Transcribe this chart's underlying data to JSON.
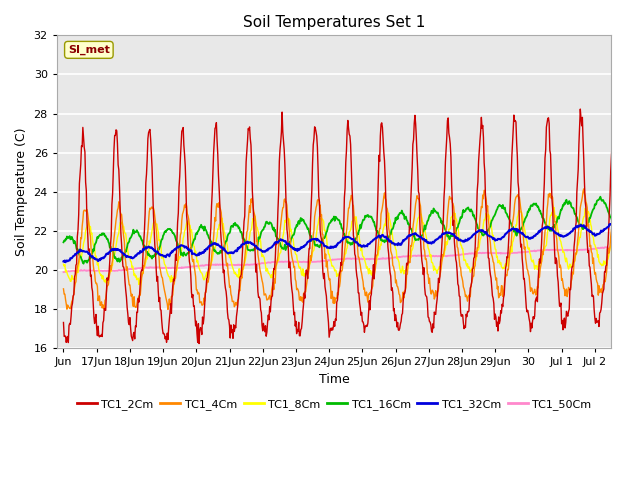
{
  "title": "Soil Temperatures Set 1",
  "xlabel": "Time",
  "ylabel": "Soil Temperature (C)",
  "ylim": [
    16,
    32
  ],
  "x_tick_labels": [
    "Jun",
    "17Jun",
    "18Jun",
    "19Jun",
    "20Jun",
    "21Jun",
    "22Jun",
    "23Jun",
    "24Jun",
    "25Jun",
    "26Jun",
    "27Jun",
    "28Jun",
    "29Jun",
    "30",
    "Jul 1",
    "Jul 2"
  ],
  "annotation_text": "SI_met",
  "legend_entries": [
    "TC1_2Cm",
    "TC1_4Cm",
    "TC1_8Cm",
    "TC1_16Cm",
    "TC1_32Cm",
    "TC1_50Cm"
  ],
  "line_colors": [
    "#cc0000",
    "#ff8800",
    "#ffff00",
    "#00bb00",
    "#0000dd",
    "#ff88cc"
  ],
  "background_color": "#e8e8e8",
  "grid_color": "#ffffff",
  "title_fontsize": 11,
  "axis_fontsize": 9,
  "tick_fontsize": 8
}
